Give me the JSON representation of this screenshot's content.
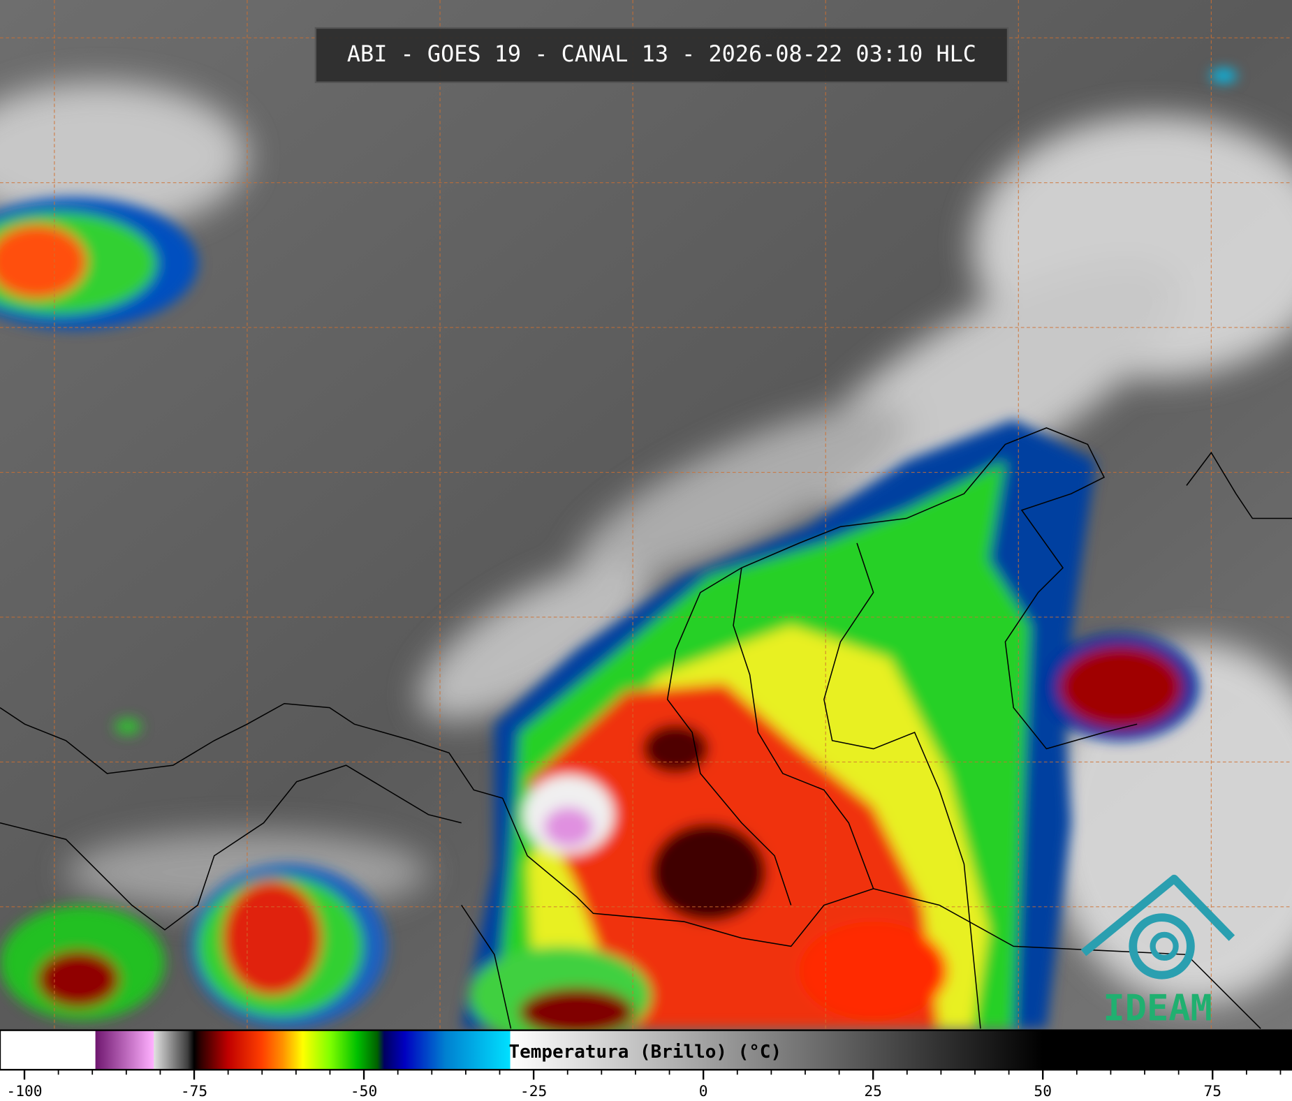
{
  "header": {
    "title": "ABI - GOES 19 - CANAL 13 - 2026-08-22 03:10 HLC"
  },
  "colorbar": {
    "label": "Temperatura (Brillo) (°C)",
    "xlim": [
      -103.6,
      86.7
    ],
    "ticks": [
      -100,
      -75,
      -50,
      -25,
      0,
      25,
      50,
      75
    ],
    "minor_ticks": [
      -95,
      -90,
      -85,
      -80,
      -70,
      -65,
      -60,
      -55,
      -45,
      -40,
      -35,
      -30,
      -20,
      -15,
      -10,
      -5,
      5,
      10,
      15,
      20,
      30,
      35,
      40,
      45,
      55,
      60,
      65,
      70,
      80,
      85
    ],
    "colorscale": [
      [
        -103.6,
        "#ffffff"
      ],
      [
        -89.6,
        "#ffffff"
      ],
      [
        -89.5,
        "#701870"
      ],
      [
        -81,
        "#ffb0ff"
      ],
      [
        -80.9,
        "#e0e0e0"
      ],
      [
        -76,
        "#404040"
      ],
      [
        -75,
        "#000000"
      ],
      [
        -74,
        "#300000"
      ],
      [
        -70,
        "#c00000"
      ],
      [
        -65,
        "#ff4000"
      ],
      [
        -62,
        "#ff9000"
      ],
      [
        -59,
        "#ffff00"
      ],
      [
        -55,
        "#80ff00"
      ],
      [
        -51,
        "#00c000"
      ],
      [
        -48,
        "#006000"
      ],
      [
        -47,
        "#000060"
      ],
      [
        -44,
        "#0000c0"
      ],
      [
        -38,
        "#0080d0"
      ],
      [
        -28.5,
        "#00e0ff"
      ],
      [
        -28.4,
        "#ffffff"
      ],
      [
        50,
        "#000000"
      ],
      [
        86.7,
        "#000000"
      ]
    ]
  },
  "logo": {
    "text": "IDEAM"
  }
}
